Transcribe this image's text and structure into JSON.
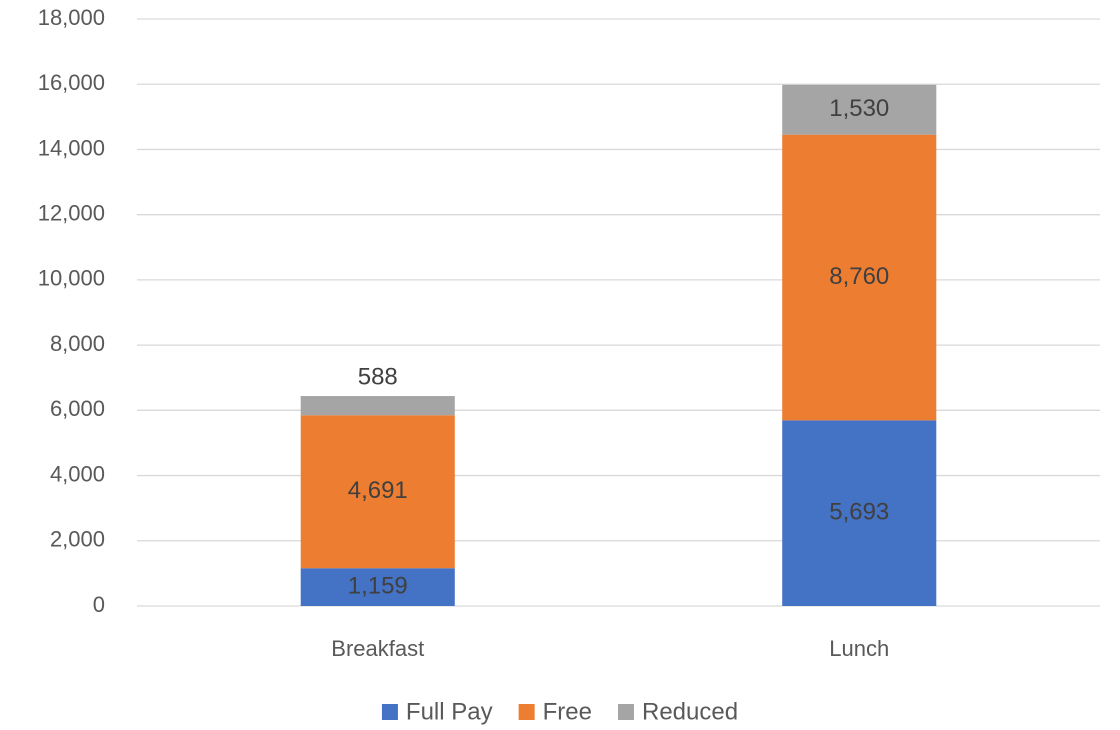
{
  "chart_data": {
    "type": "stacked_bar",
    "categories": [
      "Breakfast",
      "Lunch"
    ],
    "series": [
      {
        "name": "Full Pay",
        "color": "#4472c4",
        "values": [
          1159,
          5693
        ],
        "value_labels": [
          "1,159",
          "5,693"
        ]
      },
      {
        "name": "Free",
        "color": "#ed7d31",
        "values": [
          4691,
          8760
        ],
        "value_labels": [
          "4,691",
          "8,760"
        ]
      },
      {
        "name": "Reduced",
        "color": "#a5a5a5",
        "values": [
          588,
          1530
        ],
        "value_labels": [
          "588",
          "1,530"
        ]
      }
    ],
    "ylim": [
      0,
      18000
    ],
    "yticks": [
      0,
      {
        "value": 2000,
        "label": "2,000"
      },
      {
        "value": 4000,
        "label": "4,000"
      },
      {
        "value": 6000,
        "label": "6,000"
      },
      {
        "value": 8000,
        "label": "8,000"
      },
      {
        "value": 10000,
        "label": "10,000"
      },
      {
        "value": 12000,
        "label": "12,000"
      },
      {
        "value": 14000,
        "label": "14,000"
      },
      {
        "value": 16000,
        "label": "16,000"
      },
      {
        "value": 18000,
        "label": "18,000"
      }
    ],
    "grid": true,
    "legend": "bottom"
  }
}
